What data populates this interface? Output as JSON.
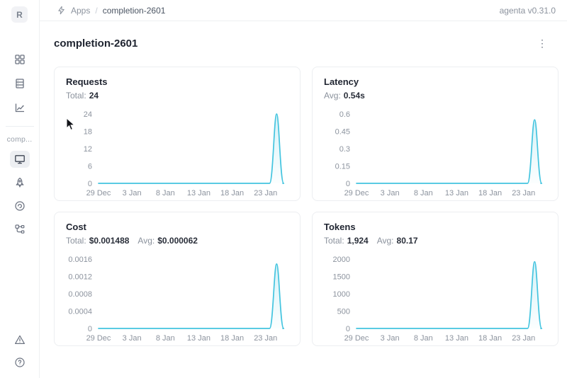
{
  "topbar": {
    "breadcrumb": {
      "app_section": "Apps",
      "separator": "/",
      "current": "completion-2601"
    },
    "version": "agenta v0.31.0"
  },
  "sidebar": {
    "workspace_initial": "R",
    "section_label": "comp...",
    "nav_icons": [
      "apps-grid-icon",
      "test-sets-list-icon",
      "evaluations-chart-icon"
    ],
    "app_nav_icons": [
      "playground-monitor-icon",
      "deployment-rocket-icon",
      "observability-gauge-icon",
      "traces-tree-icon"
    ],
    "footer_icons": [
      "alert-triangle-icon",
      "help-circle-icon"
    ],
    "selected_item": "playground-monitor-icon"
  },
  "page": {
    "title": "completion-2601",
    "menu_glyph": "⋮"
  },
  "cards": [
    {
      "id": "requests",
      "title": "Requests",
      "stats": [
        {
          "label": "Total:",
          "value": "24"
        }
      ]
    },
    {
      "id": "latency",
      "title": "Latency",
      "stats": [
        {
          "label": "Avg:",
          "value": "0.54s"
        }
      ]
    },
    {
      "id": "cost",
      "title": "Cost",
      "stats": [
        {
          "label": "Total:",
          "value": "$0.001488"
        },
        {
          "label": "Avg:",
          "value": "$0.000062"
        }
      ]
    },
    {
      "id": "tokens",
      "title": "Tokens",
      "stats": [
        {
          "label": "Total:",
          "value": "1,924"
        },
        {
          "label": "Avg:",
          "value": "80.17"
        }
      ]
    }
  ],
  "chart_data": [
    {
      "type": "area",
      "title": "Requests",
      "x_ticks": [
        "29 Dec",
        "3 Jan",
        "8 Jan",
        "13 Jan",
        "18 Jan",
        "23 Jan"
      ],
      "y_ticks": [
        "0",
        "6",
        "12",
        "18",
        "24"
      ],
      "y_max": 24,
      "ylim": [
        0,
        24
      ],
      "points": [
        [
          "29 Dec",
          0
        ],
        [
          "24 Jan",
          0
        ],
        [
          "25 Jan",
          24
        ],
        [
          "26 Jan",
          0
        ]
      ],
      "peak": 24,
      "grid": false,
      "legend": false
    },
    {
      "type": "area",
      "title": "Latency",
      "x_ticks": [
        "29 Dec",
        "3 Jan",
        "8 Jan",
        "13 Jan",
        "18 Jan",
        "23 Jan"
      ],
      "y_ticks": [
        "0",
        "0.15",
        "0.3",
        "0.45",
        "0.6"
      ],
      "y_max": 0.6,
      "ylim": [
        0,
        0.6
      ],
      "points": [
        [
          "29 Dec",
          0
        ],
        [
          "24 Jan",
          0
        ],
        [
          "25 Jan",
          0.55
        ],
        [
          "26 Jan",
          0
        ]
      ],
      "peak": 0.55,
      "grid": false,
      "legend": false
    },
    {
      "type": "area",
      "title": "Cost",
      "x_ticks": [
        "29 Dec",
        "3 Jan",
        "8 Jan",
        "13 Jan",
        "18 Jan",
        "23 Jan"
      ],
      "y_ticks": [
        "0",
        "0.0004",
        "0.0008",
        "0.0012",
        "0.0016"
      ],
      "y_max": 0.0016,
      "ylim": [
        0,
        0.0016
      ],
      "points": [
        [
          "29 Dec",
          0
        ],
        [
          "24 Jan",
          0
        ],
        [
          "25 Jan",
          0.001488
        ],
        [
          "26 Jan",
          0
        ]
      ],
      "peak": 0.001488,
      "grid": false,
      "legend": false
    },
    {
      "type": "area",
      "title": "Tokens",
      "x_ticks": [
        "29 Dec",
        "3 Jan",
        "8 Jan",
        "13 Jan",
        "18 Jan",
        "23 Jan"
      ],
      "y_ticks": [
        "0",
        "500",
        "1000",
        "1500",
        "2000"
      ],
      "y_max": 2000,
      "ylim": [
        0,
        2000
      ],
      "points": [
        [
          "29 Dec",
          0
        ],
        [
          "24 Jan",
          0
        ],
        [
          "25 Jan",
          1924
        ],
        [
          "26 Jan",
          0
        ]
      ],
      "peak": 1924,
      "grid": false,
      "legend": false
    }
  ],
  "colors": {
    "line": "#43C4DF",
    "fill_top": "rgba(67,196,223,0.22)",
    "fill_bottom": "rgba(67,196,223,0.02)",
    "tick_text": "#8c939e"
  }
}
